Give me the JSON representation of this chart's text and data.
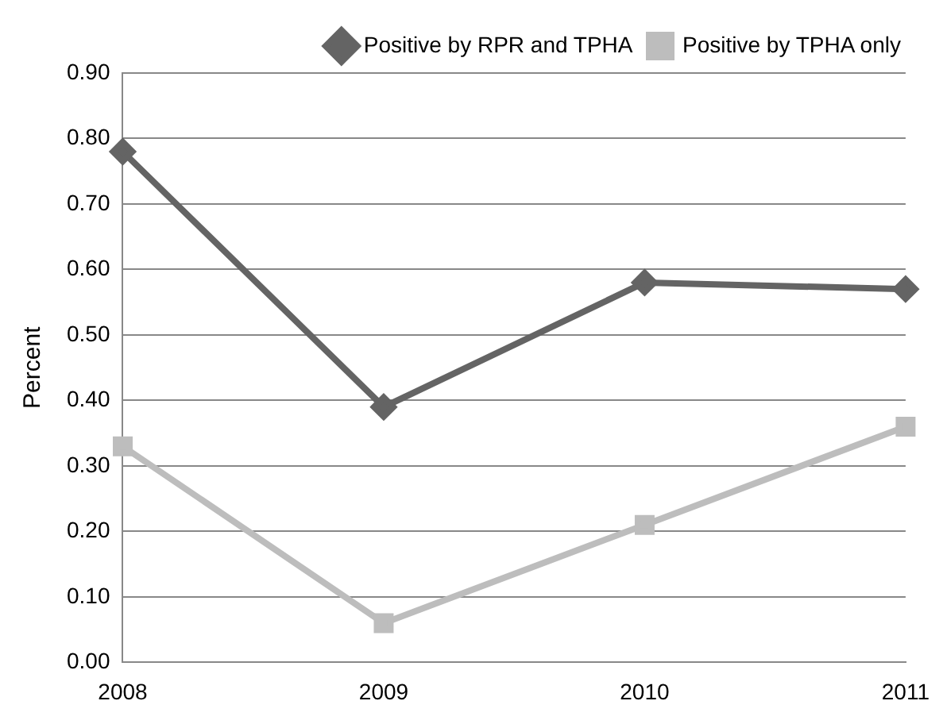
{
  "chart_data": {
    "type": "line",
    "ylabel": "Percent",
    "categories": [
      "2008",
      "2009",
      "2010",
      "2011"
    ],
    "series": [
      {
        "name": "Positive by RPR and TPHA",
        "color": "#646464",
        "values": [
          0.78,
          0.39,
          0.58,
          0.57
        ],
        "marker": "diamond"
      },
      {
        "name": "Positive by TPHA only",
        "color": "#bdbdbd",
        "values": [
          0.33,
          0.06,
          0.21,
          0.36
        ],
        "marker": "square"
      }
    ],
    "ylim": [
      0,
      0.9
    ],
    "yticks": [
      {
        "value": 0,
        "label": "0.00"
      },
      {
        "value": 0.1,
        "label": "0.10"
      },
      {
        "value": 0.2,
        "label": "0.20"
      },
      {
        "value": 0.3,
        "label": "0.30"
      },
      {
        "value": 0.4,
        "label": "0.40"
      },
      {
        "value": 0.5,
        "label": "0.50"
      },
      {
        "value": 0.6,
        "label": "0.60"
      },
      {
        "value": 0.7,
        "label": "0.70"
      },
      {
        "value": 0.8,
        "label": "0.80"
      },
      {
        "value": 0.9,
        "label": "0.90"
      }
    ],
    "grid": "y",
    "legend": "top right",
    "line_style": "solid"
  }
}
